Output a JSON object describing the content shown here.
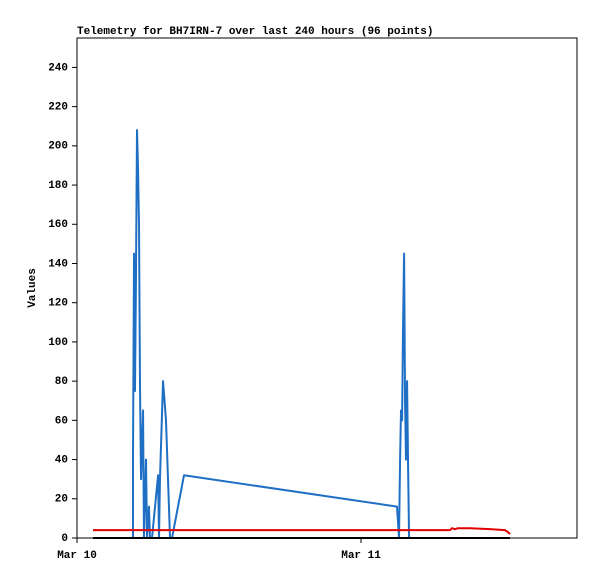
{
  "chart_data": {
    "type": "line",
    "title": "Telemetry for BH7IRN-7 over last 240 hours (96 points)",
    "y_label": "Values",
    "xlim": [
      0,
      42.25
    ],
    "xticks": [
      {
        "value": 0,
        "label": "Mar 10"
      },
      {
        "value": 24,
        "label": "Mar 11"
      }
    ],
    "ylim": [
      0,
      255
    ],
    "yticks": [
      0,
      20,
      40,
      60,
      80,
      100,
      120,
      140,
      160,
      180,
      200,
      220,
      240
    ],
    "grid": false,
    "series": [
      {
        "color": "#1f6fc5",
        "x": [
          4.73,
          4.73,
          4.82,
          4.9,
          4.98,
          5.07,
          5.15,
          5.24,
          5.32,
          5.41,
          5.58,
          5.66,
          5.83,
          5.92,
          6.08,
          6.17,
          6.34,
          6.85,
          6.93,
          7.01,
          7.27,
          7.52,
          7.69,
          7.86,
          8.03,
          9.04,
          27.04,
          27.21,
          27.3,
          27.38,
          27.47,
          27.55,
          27.64,
          27.72,
          27.8,
          27.89,
          27.97,
          28.06
        ],
        "values": [
          0,
          40,
          145,
          75,
          130,
          208,
          190,
          160,
          80,
          30,
          65,
          0,
          40,
          0,
          16,
          0,
          0,
          32,
          0,
          30,
          80,
          60,
          30,
          0,
          0,
          32,
          16,
          0,
          40,
          65,
          60,
          108,
          145,
          70,
          40,
          80,
          40,
          0
        ]
      },
      {
        "color": "#e00000",
        "x": [
          1.35,
          31.52,
          31.69,
          31.94,
          32.2,
          33.21,
          34.9,
          36.17,
          36.42,
          36.59
        ],
        "values": [
          4,
          4,
          5,
          4.5,
          5,
          5,
          4.5,
          4,
          3,
          2
        ]
      },
      {
        "color": "#000000",
        "x": [
          1.35,
          36.59
        ],
        "values": [
          0,
          0
        ]
      }
    ]
  }
}
